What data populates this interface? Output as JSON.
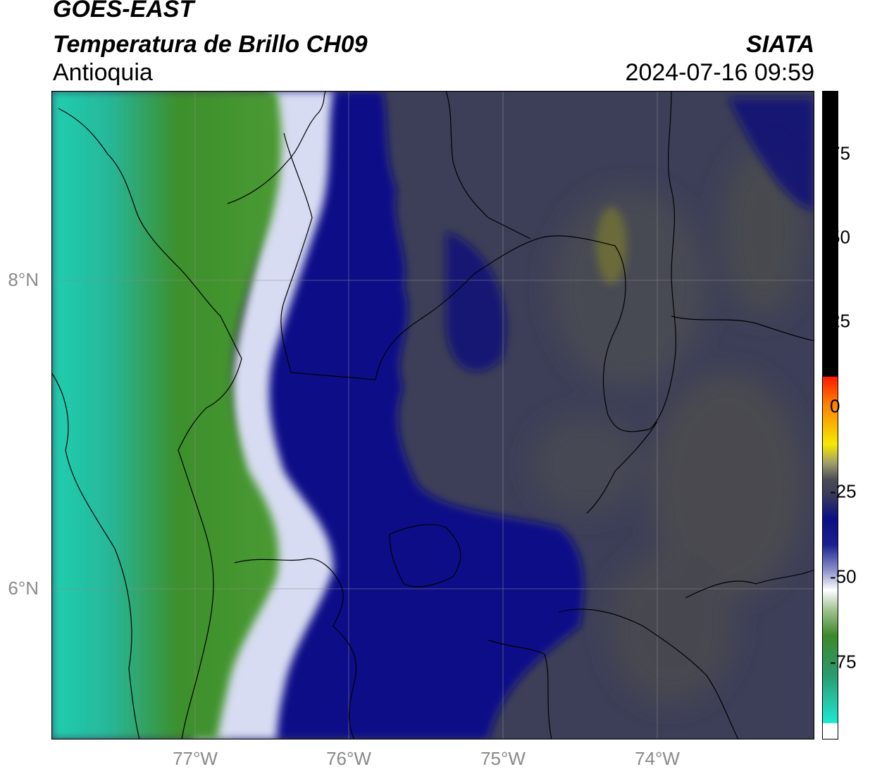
{
  "header": {
    "title_line1": "GOES-EAST",
    "title_line2": "Temperatura de Brillo CH09",
    "region": "Antioquia",
    "organization": "SIATA",
    "datetime": "2024-07-16 09:59"
  },
  "map": {
    "lat_labels": [
      "8°N",
      "6°N"
    ],
    "lon_labels": [
      "77°W",
      "76°W",
      "75°W",
      "74°W"
    ]
  },
  "colorbar": {
    "ticks": [
      "75",
      "50",
      "25",
      "0",
      "-25",
      "-50",
      "-75"
    ],
    "colors": {
      "cold_green": "#3c8a2a",
      "teal": "#1fcfb0",
      "white": "#ffffff",
      "navy": "#0b0f86",
      "gray": "#3c3f57",
      "yellow": "#f4ea00",
      "orange": "#ff7a00",
      "red": "#ff1a00",
      "black": "#000000"
    }
  }
}
